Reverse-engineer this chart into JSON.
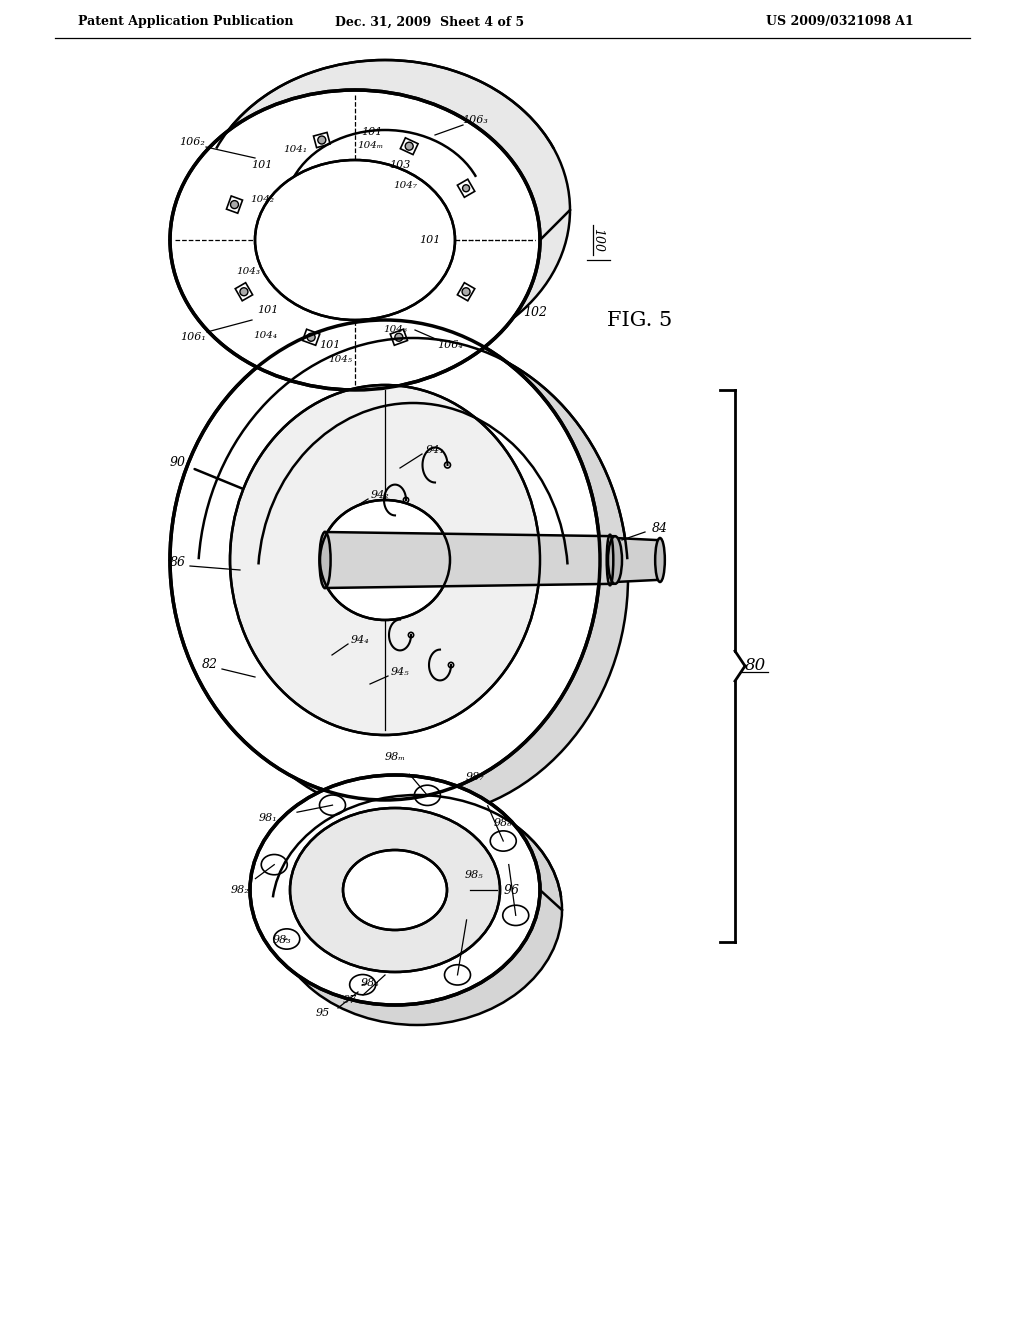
{
  "bg_color": "#ffffff",
  "line_color": "#000000",
  "header_left": "Patent Application Publication",
  "header_mid": "Dec. 31, 2009  Sheet 4 of 5",
  "header_right": "US 2009/0321098 A1"
}
